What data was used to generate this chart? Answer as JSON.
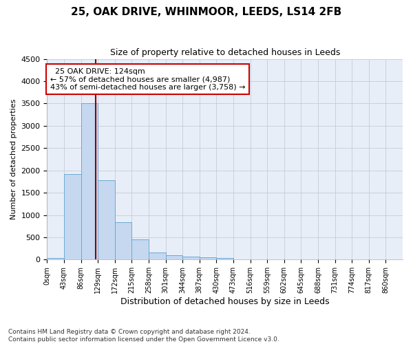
{
  "title1": "25, OAK DRIVE, WHINMOOR, LEEDS, LS14 2FB",
  "title2": "Size of property relative to detached houses in Leeds",
  "xlabel": "Distribution of detached houses by size in Leeds",
  "ylabel": "Number of detached properties",
  "footnote": "Contains HM Land Registry data © Crown copyright and database right 2024.\nContains public sector information licensed under the Open Government Licence v3.0.",
  "bin_labels": [
    "0sqm",
    "43sqm",
    "86sqm",
    "129sqm",
    "172sqm",
    "215sqm",
    "258sqm",
    "301sqm",
    "344sqm",
    "387sqm",
    "430sqm",
    "473sqm",
    "516sqm",
    "559sqm",
    "602sqm",
    "645sqm",
    "688sqm",
    "731sqm",
    "774sqm",
    "817sqm",
    "860sqm"
  ],
  "bar_values": [
    40,
    1920,
    3500,
    1780,
    840,
    455,
    160,
    100,
    60,
    50,
    35,
    0,
    0,
    0,
    0,
    0,
    0,
    0,
    0,
    0,
    0
  ],
  "bar_color": "#c5d8f0",
  "bar_edge_color": "#6aaad4",
  "annotation_line1": "  25 OAK DRIVE: 124sqm",
  "annotation_line2": "← 57% of detached houses are smaller (4,987)",
  "annotation_line3": "43% of semi-detached houses are larger (3,758) →",
  "vline_color": "#8b0000",
  "vline_x_bin": 2.88,
  "ylim": [
    0,
    4500
  ],
  "bg_color": "#e8eef8",
  "annotation_box_color": "#ffffff",
  "annotation_box_edge": "#cc0000",
  "grid_color": "#c8c8d8",
  "title1_fontsize": 11,
  "title2_fontsize": 9,
  "ylabel_fontsize": 8,
  "xlabel_fontsize": 9
}
